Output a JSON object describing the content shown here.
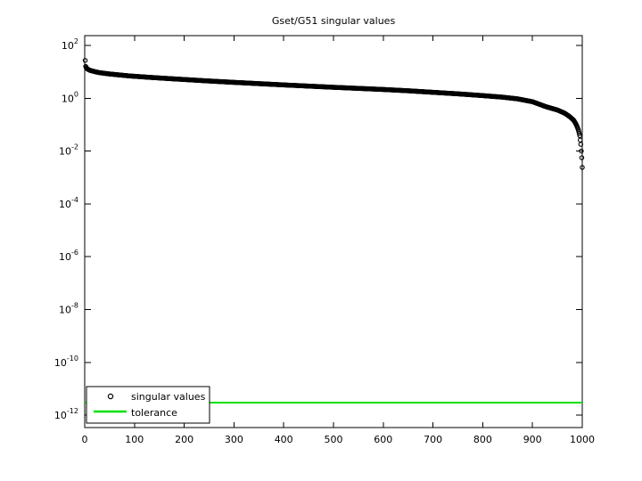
{
  "figure": {
    "title": "Gset/G51 singular values",
    "background_color": "#ffffff",
    "axes_color": "#000000"
  },
  "chart_data": {
    "type": "scatter",
    "title": "Gset/G51 singular values",
    "xlabel": "",
    "ylabel": "",
    "x_axis": {
      "min": 0,
      "max": 1000,
      "tick_labels": [
        "0",
        "100",
        "200",
        "300",
        "400",
        "500",
        "600",
        "700",
        "800",
        "900",
        "1000"
      ],
      "tick_values": [
        0,
        100,
        200,
        300,
        400,
        500,
        600,
        700,
        800,
        900,
        1000
      ]
    },
    "y_axis": {
      "scale": "log10",
      "tick_exponents": [
        2,
        0,
        -2,
        -4,
        -6,
        -8,
        -10,
        -12
      ],
      "limit_exponents": [
        -12.47,
        2.37
      ]
    },
    "grid": false,
    "series": [
      {
        "name": "singular values",
        "style": "markers",
        "marker": "hollow-circle",
        "color": "#000000",
        "n_points": 1000,
        "anchors": [
          [
            1,
            27
          ],
          [
            2,
            16
          ],
          [
            3,
            14.5
          ],
          [
            5,
            13
          ],
          [
            10,
            11.5
          ],
          [
            20,
            10.2
          ],
          [
            30,
            9.3
          ],
          [
            50,
            8.3
          ],
          [
            90,
            7.0
          ],
          [
            130,
            6.2
          ],
          [
            180,
            5.4
          ],
          [
            250,
            4.5
          ],
          [
            300,
            4.0
          ],
          [
            400,
            3.2
          ],
          [
            500,
            2.6
          ],
          [
            600,
            2.15
          ],
          [
            650,
            1.92
          ],
          [
            700,
            1.68
          ],
          [
            750,
            1.47
          ],
          [
            800,
            1.26
          ],
          [
            840,
            1.1
          ],
          [
            870,
            0.95
          ],
          [
            900,
            0.74
          ],
          [
            927,
            0.48
          ],
          [
            950,
            0.36
          ],
          [
            965,
            0.27
          ],
          [
            975,
            0.2
          ],
          [
            983,
            0.145
          ],
          [
            988,
            0.1
          ],
          [
            992,
            0.065
          ],
          [
            995,
            0.038
          ],
          [
            997,
            0.018
          ],
          [
            998,
            0.01
          ],
          [
            999,
            0.0056
          ],
          [
            1000,
            0.0024
          ]
        ]
      },
      {
        "name": "tolerance",
        "style": "line",
        "color": "#00e000",
        "value": 3e-12
      }
    ],
    "legend": {
      "position": "southwest",
      "entries": [
        {
          "label": "singular values",
          "sample": "circle-marker",
          "color": "#000000"
        },
        {
          "label": "tolerance",
          "sample": "line",
          "color": "#00e000"
        }
      ]
    }
  }
}
